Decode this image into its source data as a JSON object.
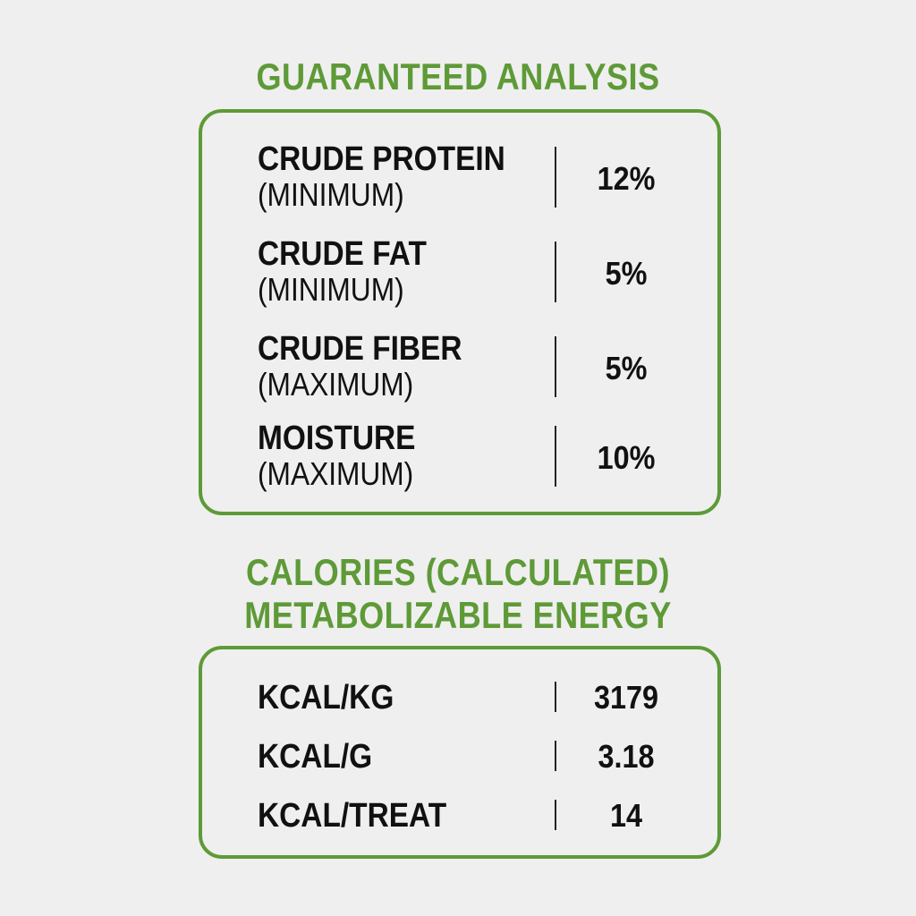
{
  "guaranteed_analysis": {
    "heading": "GUARANTEED ANALYSIS",
    "rows": [
      {
        "name": "CRUDE PROTEIN",
        "qualifier": "(MINIMUM)",
        "value": "12%"
      },
      {
        "name": "CRUDE FAT",
        "qualifier": "(MINIMUM)",
        "value": "5%"
      },
      {
        "name": "CRUDE FIBER",
        "qualifier": "(MAXIMUM)",
        "value": "5%"
      },
      {
        "name": "MOISTURE",
        "qualifier": "(MAXIMUM)",
        "value": "10%"
      }
    ]
  },
  "calories": {
    "heading_line1": "CALORIES (CALCULATED)",
    "heading_line2": "METABOLIZABLE ENERGY",
    "rows": [
      {
        "unit": "KCAL/KG",
        "value": "3179"
      },
      {
        "unit": "KCAL/G",
        "value": "3.18"
      },
      {
        "unit": "KCAL/TREAT",
        "value": "14"
      }
    ]
  },
  "colors": {
    "accent_green": "#5e9a37",
    "text": "#111111",
    "background": "#efefef"
  }
}
